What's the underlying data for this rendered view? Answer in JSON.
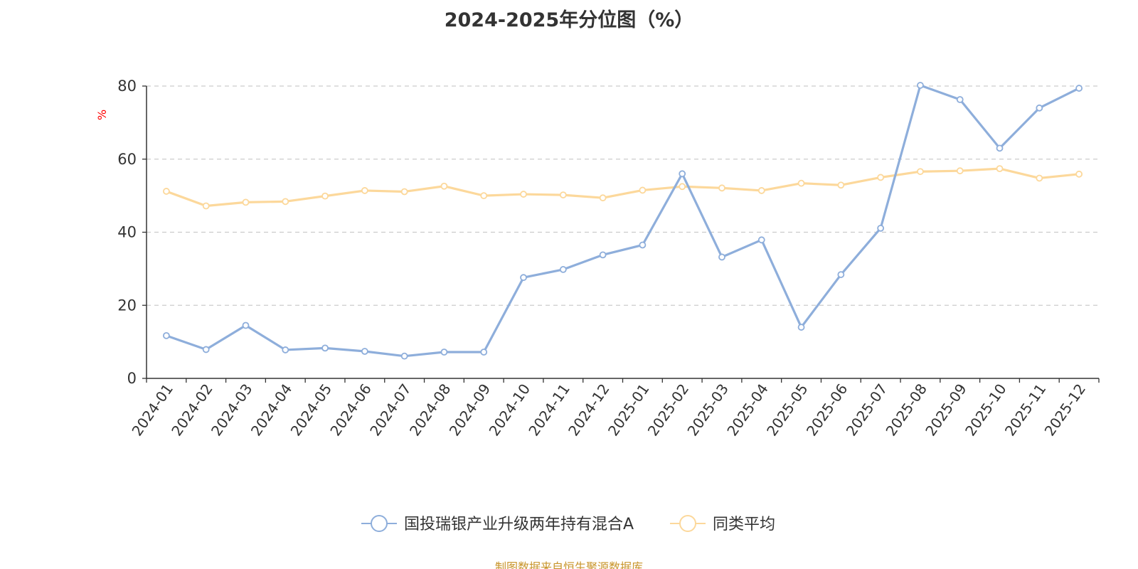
{
  "chart_data": {
    "type": "line",
    "title": "2024-2025年分位图（%）",
    "ylabel": "%",
    "xlabel": "",
    "ylim": [
      0,
      80
    ],
    "yticks": [
      0,
      20,
      40,
      60,
      80
    ],
    "grid": true,
    "legend_position": "bottom",
    "categories": [
      "2024-01",
      "2024-02",
      "2024-03",
      "2024-04",
      "2024-05",
      "2024-06",
      "2024-07",
      "2024-08",
      "2024-09",
      "2024-10",
      "2024-11",
      "2024-12",
      "2025-01",
      "2025-02",
      "2025-03",
      "2025-04",
      "2025-05",
      "2025-06",
      "2025-07",
      "2025-08",
      "2025-09",
      "2025-10",
      "2025-11",
      "2025-12"
    ],
    "series": [
      {
        "name": "国投瑞银产业升级两年持有混合A",
        "color": "#8eaedb",
        "values": [
          11.7,
          7.9,
          14.5,
          7.8,
          8.3,
          7.4,
          6.1,
          7.2,
          7.2,
          27.6,
          29.8,
          33.8,
          36.5,
          56.0,
          33.2,
          37.9,
          14.0,
          28.4,
          41.1,
          80.2,
          76.3,
          63.0,
          74.0,
          79.4
        ]
      },
      {
        "name": "同类平均",
        "color": "#fcd89b",
        "values": [
          51.2,
          47.2,
          48.2,
          48.4,
          49.9,
          51.4,
          51.1,
          52.6,
          50.0,
          50.4,
          50.2,
          49.4,
          51.5,
          52.5,
          52.1,
          51.4,
          53.4,
          52.9,
          55.0,
          56.6,
          56.8,
          57.4,
          54.8,
          55.9
        ]
      }
    ]
  },
  "source_text": "制图数据来自恒生聚源数据库",
  "colors": {
    "axis": "#333333",
    "grid": "#cccccc",
    "ylabel": "#ff0000",
    "source": "#c8952b"
  }
}
